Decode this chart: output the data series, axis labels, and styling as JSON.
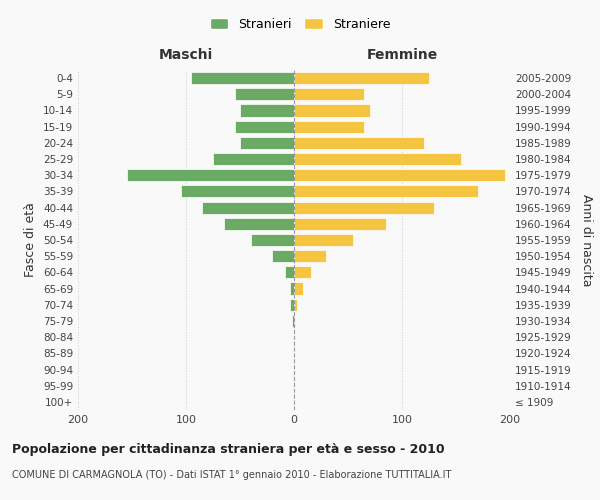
{
  "age_groups": [
    "100+",
    "95-99",
    "90-94",
    "85-89",
    "80-84",
    "75-79",
    "70-74",
    "65-69",
    "60-64",
    "55-59",
    "50-54",
    "45-49",
    "40-44",
    "35-39",
    "30-34",
    "25-29",
    "20-24",
    "15-19",
    "10-14",
    "5-9",
    "0-4"
  ],
  "birth_years": [
    "≤ 1909",
    "1910-1914",
    "1915-1919",
    "1920-1924",
    "1925-1929",
    "1930-1934",
    "1935-1939",
    "1940-1944",
    "1945-1949",
    "1950-1954",
    "1955-1959",
    "1960-1964",
    "1965-1969",
    "1970-1974",
    "1975-1979",
    "1980-1984",
    "1985-1989",
    "1990-1994",
    "1995-1999",
    "2000-2004",
    "2005-2009"
  ],
  "maschi": [
    0,
    0,
    0,
    0,
    0,
    2,
    4,
    4,
    8,
    20,
    40,
    65,
    85,
    105,
    155,
    75,
    50,
    55,
    50,
    55,
    95
  ],
  "femmine": [
    0,
    0,
    0,
    0,
    0,
    1,
    3,
    8,
    16,
    30,
    55,
    85,
    130,
    170,
    195,
    155,
    120,
    65,
    70,
    65,
    125
  ],
  "color_maschi": "#6aaa64",
  "color_femmine": "#f5c542",
  "title": "Popolazione per cittadinanza straniera per età e sesso - 2010",
  "subtitle": "COMUNE DI CARMAGNOLA (TO) - Dati ISTAT 1° gennaio 2010 - Elaborazione TUTTITALIA.IT",
  "legend_maschi": "Stranieri",
  "legend_femmine": "Straniere",
  "xlabel_left": "Maschi",
  "xlabel_right": "Femmine",
  "ylabel_left": "Fasce di età",
  "ylabel_right": "Anni di nascita",
  "xlim": 200,
  "bg_color": "#f9f9f9",
  "grid_color": "#cccccc"
}
